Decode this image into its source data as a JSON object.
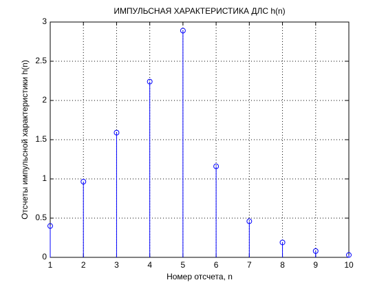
{
  "chart_data": {
    "type": "stem",
    "title": "ИМПУЛЬСНАЯ ХАРАКТЕРИСТИКА ДЛС h(n)",
    "x_label": "Номер отсчета, n",
    "y_label": "Отсчеты импульсной характеристики h(n)",
    "x": [
      1,
      2,
      3,
      4,
      5,
      6,
      7,
      8,
      9,
      10
    ],
    "values": [
      0.4,
      0.965,
      1.59,
      2.24,
      2.89,
      1.16,
      0.46,
      0.19,
      0.08,
      0.03
    ],
    "color": "#0000ff",
    "xlim": [
      1,
      10
    ],
    "xticks": [
      1,
      2,
      3,
      4,
      5,
      6,
      7,
      8,
      9,
      10
    ],
    "ylim": [
      0,
      3
    ],
    "yticks": [
      0,
      0.5,
      1,
      1.5,
      2,
      2.5,
      3
    ],
    "grid": true
  }
}
